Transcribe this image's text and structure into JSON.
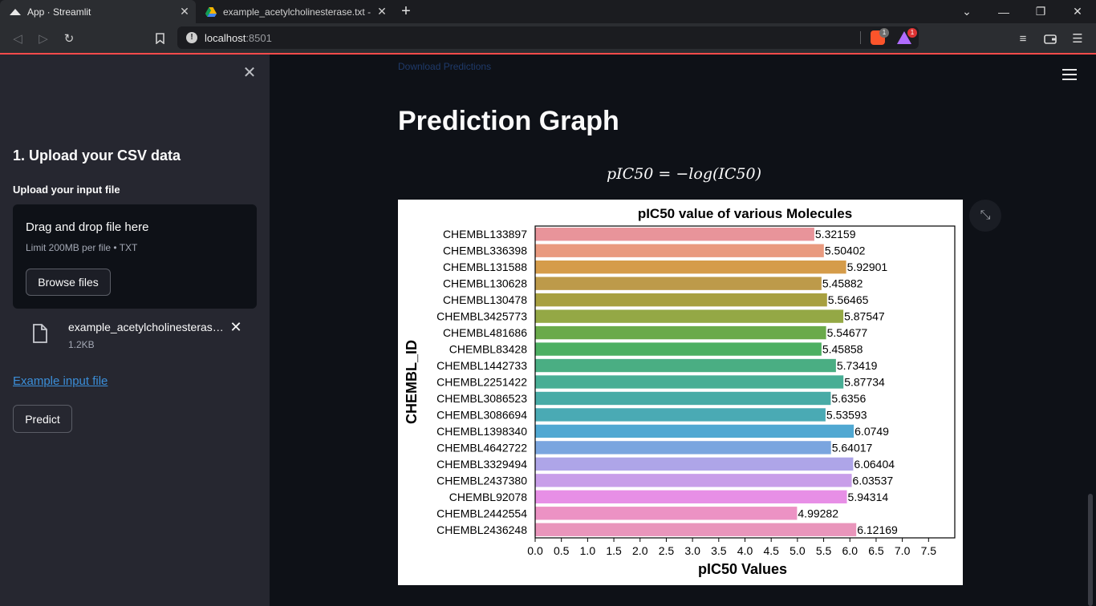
{
  "browser": {
    "tabs": [
      {
        "title": "App · Streamlit",
        "active": true
      },
      {
        "title": "example_acetylcholinesterase.txt - Goo",
        "active": false
      }
    ],
    "url_host": "localhost",
    "url_port": ":8501",
    "brave_badge": "1",
    "rewards_badge": "1"
  },
  "sidebar": {
    "heading": "1. Upload your CSV data",
    "upload_label": "Upload your input file",
    "dropzone_title": "Drag and drop file here",
    "dropzone_limit": "Limit 200MB per file • TXT",
    "browse_label": "Browse files",
    "file_name": "example_acetylcholinesterase.txt",
    "file_size": "1.2KB",
    "example_link": "Example input file",
    "predict_label": "Predict"
  },
  "main": {
    "faded_link": "Download Predictions",
    "title": "Prediction Graph",
    "formula": "pIC50 = −log(IC50)"
  },
  "colors": {
    "accent": "#ff4b4b",
    "link": "#3b8ed8",
    "bars": [
      "#e8949a",
      "#e99a7f",
      "#d59c4a",
      "#bd9a4a",
      "#a8a040",
      "#94a845",
      "#6aaa4a",
      "#4daf62",
      "#4aae83",
      "#48ae95",
      "#48aba6",
      "#4aaab4",
      "#50a8d2",
      "#7aa5df",
      "#aea5e8",
      "#c89ee9",
      "#e78fe6",
      "#ec92c4",
      "#e995bb"
    ]
  },
  "chart_data": {
    "type": "bar",
    "orientation": "horizontal",
    "title": "pIC50 value of various Molecules",
    "xlabel": "pIC50 Values",
    "ylabel": "CHEMBL_ID",
    "xlim": [
      0,
      8
    ],
    "xticks": [
      "0.0",
      "0.5",
      "1.0",
      "1.5",
      "2.0",
      "2.5",
      "3.0",
      "3.5",
      "4.0",
      "4.5",
      "5.0",
      "5.5",
      "6.0",
      "6.5",
      "7.0",
      "7.5"
    ],
    "categories": [
      "CHEMBL133897",
      "CHEMBL336398",
      "CHEMBL131588",
      "CHEMBL130628",
      "CHEMBL130478",
      "CHEMBL3425773",
      "CHEMBL481686",
      "CHEMBL83428",
      "CHEMBL1442733",
      "CHEMBL2251422",
      "CHEMBL3086523",
      "CHEMBL3086694",
      "CHEMBL1398340",
      "CHEMBL4642722",
      "CHEMBL3329494",
      "CHEMBL2437380",
      "CHEMBL92078",
      "CHEMBL2442554",
      "CHEMBL2436248"
    ],
    "values": [
      5.32159,
      5.50402,
      5.92901,
      5.45882,
      5.56465,
      5.87547,
      5.54677,
      5.45858,
      5.73419,
      5.87734,
      5.6356,
      5.53593,
      6.0749,
      5.64017,
      6.06404,
      6.03537,
      5.94314,
      4.99282,
      6.12169
    ],
    "value_labels": [
      "5.32159",
      "5.50402",
      "5.92901",
      "5.45882",
      "5.56465",
      "5.87547",
      "5.54677",
      "5.45858",
      "5.73419",
      "5.87734",
      "5.6356",
      "5.53593",
      "6.0749",
      "5.64017",
      "6.06404",
      "6.03537",
      "5.94314",
      "4.99282",
      "6.12169"
    ]
  }
}
